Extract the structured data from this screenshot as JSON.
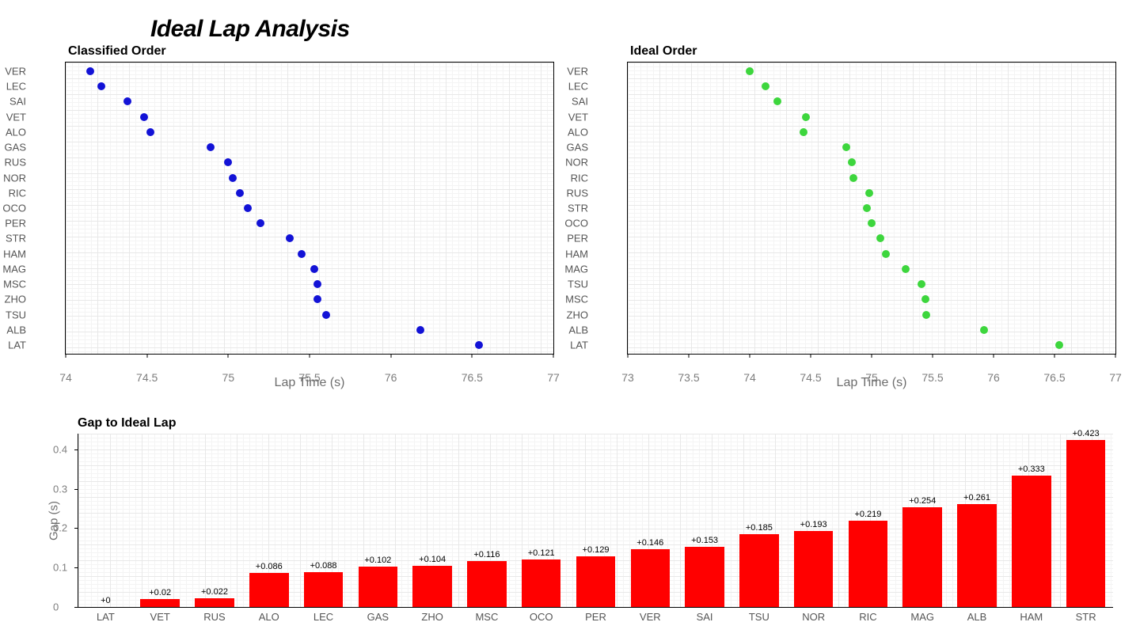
{
  "title": "Ideal Lap Analysis",
  "classified": {
    "subtitle": "Classified Order",
    "type": "scatter",
    "color": "#1212d6",
    "marker_size": 10,
    "x_axis_title": "Lap Time (s)",
    "xlim": [
      74,
      77
    ],
    "xticks": [
      74,
      74.5,
      75,
      75.5,
      76,
      76.5,
      77
    ],
    "xtick_labels": [
      "74",
      "74.5",
      "75",
      "75.5",
      "76",
      "76.5",
      "77"
    ],
    "background_color": "#ffffff",
    "grid_color": "#e8e8e8",
    "drivers": [
      "VER",
      "LEC",
      "SAI",
      "VET",
      "ALO",
      "GAS",
      "RUS",
      "NOR",
      "RIC",
      "OCO",
      "PER",
      "STR",
      "HAM",
      "MAG",
      "MSC",
      "ZHO",
      "TSU",
      "ALB",
      "LAT"
    ],
    "values": [
      74.15,
      74.22,
      74.38,
      74.48,
      74.52,
      74.89,
      75.0,
      75.03,
      75.07,
      75.12,
      75.2,
      75.38,
      75.45,
      75.53,
      75.55,
      75.55,
      75.6,
      76.18,
      76.54
    ]
  },
  "ideal": {
    "subtitle": "Ideal Order",
    "type": "scatter",
    "color": "#3dd63d",
    "marker_size": 10,
    "x_axis_title": "Lap Time (s)",
    "xlim": [
      73,
      77
    ],
    "xticks": [
      73,
      73.5,
      74,
      74.5,
      75,
      75.5,
      76,
      76.5,
      77
    ],
    "xtick_labels": [
      "73",
      "73.5",
      "74",
      "74.5",
      "75",
      "75.5",
      "76",
      "76.5",
      "77"
    ],
    "background_color": "#ffffff",
    "grid_color": "#e8e8e8",
    "drivers": [
      "VER",
      "LEC",
      "SAI",
      "VET",
      "ALO",
      "GAS",
      "NOR",
      "RIC",
      "RUS",
      "STR",
      "OCO",
      "PER",
      "HAM",
      "MAG",
      "TSU",
      "MSC",
      "ZHO",
      "ALB",
      "LAT"
    ],
    "values": [
      74.0,
      74.13,
      74.23,
      74.46,
      74.44,
      74.79,
      74.84,
      74.85,
      74.98,
      74.96,
      75.0,
      75.07,
      75.12,
      75.28,
      75.41,
      75.44,
      75.45,
      75.92,
      76.54
    ]
  },
  "gap": {
    "subtitle": "Gap to Ideal Lap",
    "type": "bar",
    "color": "#ff0000",
    "y_axis_title": "Gap (s)",
    "ylim": [
      0,
      0.44
    ],
    "yticks": [
      0,
      0.1,
      0.2,
      0.3,
      0.4
    ],
    "ytick_labels": [
      "0",
      "0.1",
      "0.2",
      "0.3",
      "0.4"
    ],
    "bar_width": 0.72,
    "background_color": "#ffffff",
    "grid_color": "#e8e8e8",
    "label_fontsize": 11,
    "drivers": [
      "LAT",
      "VET",
      "RUS",
      "ALO",
      "LEC",
      "GAS",
      "ZHO",
      "MSC",
      "OCO",
      "PER",
      "VER",
      "SAI",
      "TSU",
      "NOR",
      "RIC",
      "MAG",
      "ALB",
      "HAM",
      "STR"
    ],
    "values": [
      0,
      0.02,
      0.022,
      0.086,
      0.088,
      0.102,
      0.104,
      0.116,
      0.121,
      0.129,
      0.146,
      0.153,
      0.185,
      0.193,
      0.219,
      0.254,
      0.261,
      0.333,
      0.423
    ],
    "value_labels": [
      "+0",
      "+0.02",
      "+0.022",
      "+0.086",
      "+0.088",
      "+0.102",
      "+0.104",
      "+0.116",
      "+0.121",
      "+0.129",
      "+0.146",
      "+0.153",
      "+0.185",
      "+0.193",
      "+0.219",
      "+0.254",
      "+0.261",
      "+0.333",
      "+0.423"
    ]
  }
}
